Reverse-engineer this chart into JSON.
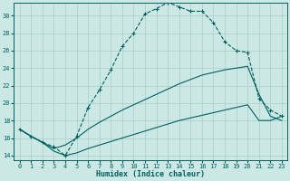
{
  "xlabel": "Humidex (Indice chaleur)",
  "xlim": [
    -0.5,
    23.5
  ],
  "ylim": [
    13.5,
    31.5
  ],
  "xticks": [
    0,
    1,
    2,
    3,
    4,
    5,
    6,
    7,
    8,
    9,
    10,
    11,
    12,
    13,
    14,
    15,
    16,
    17,
    18,
    19,
    20,
    21,
    22,
    23
  ],
  "yticks": [
    14,
    16,
    18,
    20,
    22,
    24,
    26,
    28,
    30
  ],
  "bg_color": "#cce8e4",
  "grid_color": "#aaccca",
  "line_color": "#006060",
  "curve1_x": [
    0,
    1,
    2,
    3,
    4,
    5,
    6,
    7,
    8,
    9,
    10,
    11,
    12,
    13,
    14,
    15,
    16,
    17,
    18,
    19,
    20,
    21,
    22,
    23
  ],
  "curve1_y": [
    17.0,
    16.2,
    15.5,
    15.0,
    14.0,
    16.2,
    19.5,
    21.5,
    23.8,
    26.5,
    28.0,
    30.2,
    30.8,
    31.5,
    31.0,
    30.5,
    30.5,
    29.2,
    27.0,
    26.0,
    25.8,
    20.5,
    19.2,
    18.5
  ],
  "curve2_x": [
    0,
    1,
    2,
    3,
    4,
    5,
    6,
    7,
    8,
    9,
    10,
    11,
    12,
    13,
    14,
    15,
    16,
    17,
    18,
    19,
    20,
    21,
    22,
    23
  ],
  "curve2_y": [
    17.0,
    16.2,
    15.5,
    14.8,
    15.2,
    16.0,
    17.0,
    17.8,
    18.5,
    19.2,
    19.8,
    20.4,
    21.0,
    21.6,
    22.2,
    22.7,
    23.2,
    23.5,
    23.8,
    24.0,
    24.2,
    21.0,
    18.5,
    18.0
  ],
  "curve3_x": [
    0,
    1,
    2,
    3,
    4,
    5,
    6,
    7,
    8,
    9,
    10,
    11,
    12,
    13,
    14,
    15,
    16,
    17,
    18,
    19,
    20,
    21,
    22,
    23
  ],
  "curve3_y": [
    17.0,
    16.2,
    15.5,
    14.5,
    14.0,
    14.3,
    14.8,
    15.2,
    15.6,
    16.0,
    16.4,
    16.8,
    17.2,
    17.6,
    18.0,
    18.3,
    18.6,
    18.9,
    19.2,
    19.5,
    19.8,
    18.0,
    18.0,
    18.5
  ]
}
